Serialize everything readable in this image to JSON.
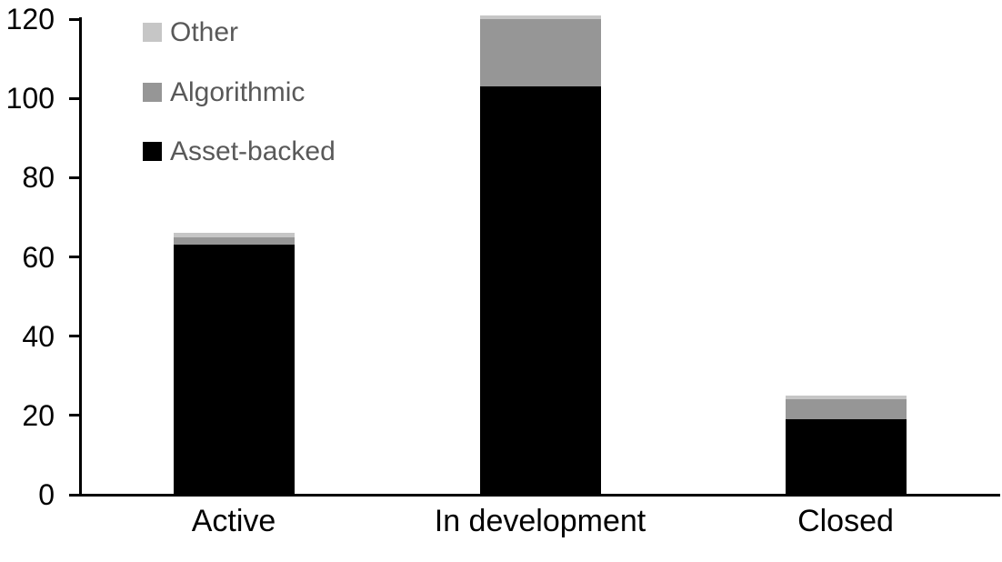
{
  "chart_data": {
    "type": "bar",
    "subtype": "stacked",
    "title": "",
    "xlabel": "",
    "ylabel": "",
    "categories": [
      "Active",
      "In development",
      "Closed"
    ],
    "series": [
      {
        "name": "Asset-backed",
        "color": "#000000",
        "values": [
          63,
          103,
          19
        ]
      },
      {
        "name": "Algorithmic",
        "color": "#969696",
        "values": [
          2,
          17,
          5
        ]
      },
      {
        "name": "Other",
        "color": "#c6c6c6",
        "values": [
          1,
          1,
          1
        ]
      }
    ],
    "stack_order_bottom_to_top": [
      "Asset-backed",
      "Algorithmic",
      "Other"
    ],
    "y_axis": {
      "min": 0,
      "max": 120,
      "tick_interval": 20,
      "tick_labels": [
        "0",
        "20",
        "40",
        "60",
        "80",
        "100",
        "120"
      ]
    },
    "legend": {
      "position": "top-left-inside",
      "entries_top_to_bottom": [
        "Other",
        "Algorithmic",
        "Asset-backed"
      ],
      "text_color": "#595959"
    },
    "grid": false,
    "axis_color": "#000000",
    "background_color": "#ffffff"
  }
}
